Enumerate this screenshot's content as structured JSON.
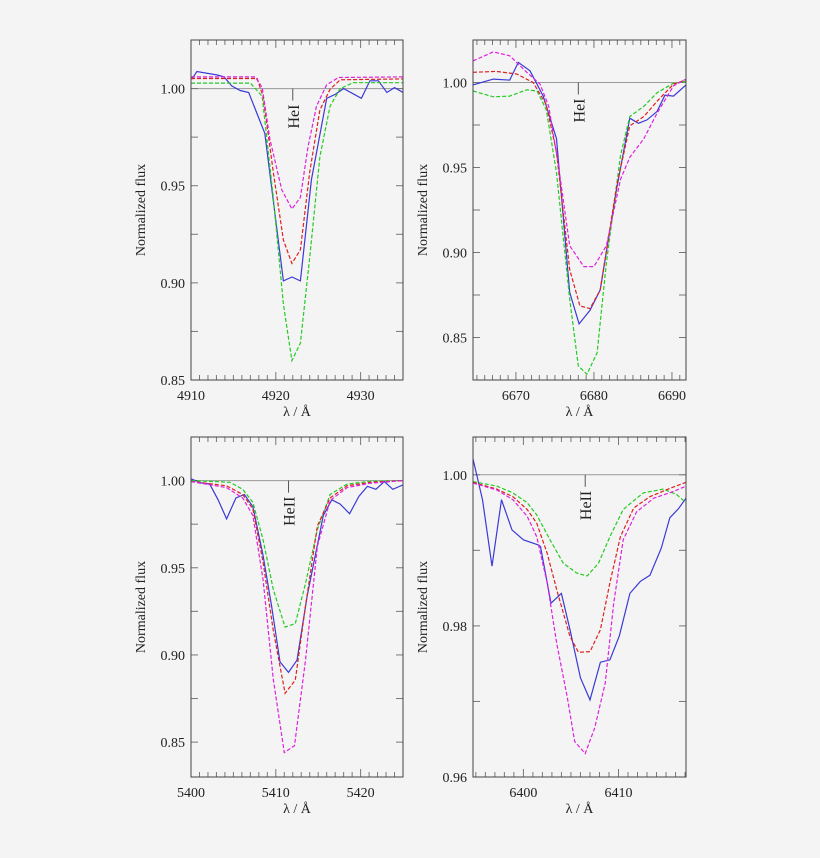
{
  "chart_data": [
    {
      "type": "line",
      "line_label": "HeI",
      "line_center": 4922,
      "xlabel": "λ / Å",
      "ylabel": "Normalized flux",
      "xlim": [
        4910,
        4935
      ],
      "ylim": [
        0.85,
        1.025
      ],
      "xticks": [
        4910,
        4920,
        4930
      ],
      "xtick_labels": [
        "4910",
        "4920",
        "4930"
      ],
      "xminor_step": 1,
      "yticks": [
        0.85,
        0.9,
        0.95,
        1.0
      ],
      "ytick_labels": [
        "0.85",
        "0.90",
        "0.95",
        "1.00"
      ],
      "yminor_step": 0.025,
      "reference_line": 1.0,
      "grid": false,
      "series": [
        {
          "color": "#3a3ad8",
          "style": "solid",
          "x": [
            4910.1,
            4910.7,
            4913.1,
            4913.9,
            4914.8,
            4915.8,
            4916.8,
            4918.7,
            4920.9,
            4921.9,
            4922.9,
            4924.2,
            4926,
            4927,
            4928,
            4930.1,
            4931.1,
            4932.1,
            4933.1,
            4934,
            4935
          ],
          "y": [
            1.0048,
            1.0088,
            1.007,
            1.006,
            1.0014,
            0.999,
            0.998,
            0.977,
            0.901,
            0.903,
            0.901,
            0.953,
            0.995,
            0.997,
            1.0,
            0.995,
            1.004,
            1.004,
            0.998,
            1.0005,
            0.998
          ]
        },
        {
          "color": "#22cc22",
          "style": "dashed",
          "x": [
            4910,
            4917,
            4918.4,
            4919.7,
            4920.9,
            4921.9,
            4922.9,
            4924,
            4925.2,
            4926.4,
            4927.6,
            4929.1,
            4935
          ],
          "y": [
            1.0028,
            1.0028,
            0.996,
            0.944,
            0.889,
            0.86,
            0.869,
            0.913,
            0.965,
            0.991,
            1.0,
            1.003,
            1.003
          ]
        },
        {
          "color": "#e02020",
          "style": "dashed",
          "x": [
            4910,
            4917.8,
            4918.5,
            4919.7,
            4920.9,
            4921.9,
            4922.9,
            4924,
            4925.2,
            4926.4,
            4927.6,
            4935
          ],
          "y": [
            1.0052,
            1.0052,
            0.996,
            0.957,
            0.922,
            0.91,
            0.917,
            0.957,
            0.989,
            0.9997,
            1.0045,
            1.005
          ]
        },
        {
          "color": "#e020e0",
          "style": "dashed",
          "x": [
            4910,
            4917.6,
            4918.4,
            4919.3,
            4920.7,
            4921.9,
            4922.9,
            4923.8,
            4924.8,
            4926,
            4927.4,
            4935
          ],
          "y": [
            1.006,
            1.006,
            1.0005,
            0.974,
            0.948,
            0.938,
            0.944,
            0.97,
            0.991,
            1.002,
            1.0057,
            1.006
          ]
        }
      ]
    },
    {
      "type": "line",
      "line_label": "HeI",
      "line_center": 6678,
      "xlabel": "λ / Å",
      "ylabel": "Normalized flux",
      "xlim": [
        6664.5,
        6691.8
      ],
      "ylim": [
        0.825,
        1.025
      ],
      "xticks": [
        6670,
        6680,
        6690
      ],
      "xtick_labels": [
        "6670",
        "6680",
        "6690"
      ],
      "xminor_step": 1,
      "yticks": [
        0.85,
        0.9,
        0.95,
        1.0
      ],
      "ytick_labels": [
        "0.85",
        "0.90",
        "0.95",
        "1.00"
      ],
      "yminor_step": 0.025,
      "reference_line": 1.0,
      "grid": false,
      "series": [
        {
          "color": "#3a3ad8",
          "style": "solid",
          "x": [
            6664.5,
            6667.1,
            6669.2,
            6670.3,
            6671.8,
            6673.5,
            6675.2,
            6676.9,
            6678.1,
            6679.5,
            6680.8,
            6682.9,
            6684.6,
            6685.7,
            6686.8,
            6688.1,
            6689.1,
            6690.2,
            6691.8
          ],
          "y": [
            0.9986,
            1.002,
            1.0014,
            1.0118,
            1.0069,
            0.992,
            0.967,
            0.8765,
            0.858,
            0.866,
            0.878,
            0.9373,
            0.979,
            0.976,
            0.978,
            0.983,
            0.9925,
            0.992,
            0.9986
          ]
        },
        {
          "color": "#22cc22",
          "style": "dashed",
          "x": [
            6664.5,
            6667.1,
            6669.2,
            6671.4,
            6672.7,
            6673.9,
            6675.2,
            6676.9,
            6678,
            6679.1,
            6680.4,
            6681.6,
            6683.4,
            6684.6,
            6686.4,
            6688.1,
            6690.2,
            6691.8
          ],
          "y": [
            0.995,
            0.9916,
            0.992,
            0.9957,
            0.995,
            0.984,
            0.947,
            0.8725,
            0.8333,
            0.8284,
            0.841,
            0.894,
            0.957,
            0.98,
            0.986,
            0.994,
            0.9996,
            1.0006
          ]
        },
        {
          "color": "#e02020",
          "style": "dashed",
          "x": [
            6664.5,
            6667.5,
            6670.1,
            6672.2,
            6673.9,
            6675.2,
            6676.9,
            6678.2,
            6679.5,
            6680.8,
            6682.9,
            6684.6,
            6686.4,
            6688.1,
            6690.2,
            6691.8
          ],
          "y": [
            1.006,
            1.0065,
            1.005,
            1.0,
            0.987,
            0.959,
            0.89,
            0.8686,
            0.867,
            0.878,
            0.939,
            0.9745,
            0.98,
            0.989,
            0.999,
            1.0016
          ]
        },
        {
          "color": "#e020e0",
          "style": "dashed",
          "x": [
            6664.5,
            6667.1,
            6669.2,
            6671.4,
            6673.1,
            6674.2,
            6675.4,
            6676.9,
            6678.7,
            6680,
            6681.6,
            6683.4,
            6684.6,
            6686.4,
            6688.1,
            6690.2,
            6691.8
          ],
          "y": [
            1.0127,
            1.018,
            1.0157,
            1.006,
            0.999,
            0.986,
            0.953,
            0.904,
            0.8917,
            0.8917,
            0.904,
            0.943,
            0.956,
            0.967,
            0.982,
            0.998,
            1.002
          ]
        }
      ]
    },
    {
      "type": "line",
      "line_label": "HeII",
      "line_center": 5411.5,
      "xlabel": "λ / Å",
      "ylabel": "Normalized flux",
      "xlim": [
        5400,
        5425
      ],
      "ylim": [
        0.83,
        1.025
      ],
      "xticks": [
        5400,
        5410,
        5420
      ],
      "xtick_labels": [
        "5400",
        "5410",
        "5420"
      ],
      "xminor_step": 1,
      "yticks": [
        0.85,
        0.9,
        0.95,
        1.0
      ],
      "ytick_labels": [
        "0.85",
        "0.90",
        "0.95",
        "1.00"
      ],
      "yminor_step": 0.025,
      "reference_line": 1.0,
      "grid": false,
      "series": [
        {
          "color": "#3a3ad8",
          "style": "solid",
          "x": [
            5400,
            5401.2,
            5402.2,
            5403.2,
            5404.2,
            5405.3,
            5406.3,
            5407.3,
            5408.5,
            5409.5,
            5410.5,
            5411.5,
            5412.5,
            5413.7,
            5415.6,
            5416.6,
            5417.6,
            5418.7,
            5419.8,
            5420.8,
            5421.8,
            5422.8,
            5423.8,
            5425
          ],
          "y": [
            1.001,
            0.9987,
            0.998,
            0.989,
            0.978,
            0.99,
            0.992,
            0.985,
            0.957,
            0.928,
            0.896,
            0.89,
            0.897,
            0.934,
            0.98,
            0.989,
            0.9865,
            0.981,
            0.991,
            0.9967,
            0.995,
            0.9994,
            0.995,
            0.9975
          ]
        },
        {
          "color": "#22cc22",
          "style": "dashed",
          "x": [
            5400,
            5404.6,
            5406.1,
            5407.3,
            5408.5,
            5409.7,
            5411.1,
            5412.3,
            5413.5,
            5414.9,
            5416.4,
            5418.4,
            5421.2,
            5425
          ],
          "y": [
            1.0,
            0.999,
            0.995,
            0.9875,
            0.966,
            0.9375,
            0.916,
            0.918,
            0.941,
            0.972,
            0.992,
            0.998,
            0.9996,
            1.0
          ]
        },
        {
          "color": "#e02020",
          "style": "dashed",
          "x": [
            5400,
            5404.2,
            5406.1,
            5407.3,
            5408.5,
            5409.7,
            5411.1,
            5412.3,
            5413.5,
            5414.9,
            5416.4,
            5418.4,
            5421.2,
            5425
          ],
          "y": [
            0.9996,
            0.997,
            0.992,
            0.9837,
            0.953,
            0.914,
            0.878,
            0.8856,
            0.928,
            0.974,
            0.99,
            0.997,
            0.999,
            1.0
          ]
        },
        {
          "color": "#e020e0",
          "style": "dashed",
          "x": [
            5400,
            5404.2,
            5406.1,
            5407.3,
            5408.5,
            5409.7,
            5411,
            5412.2,
            5413.5,
            5414.9,
            5416.4,
            5418.4,
            5421.2,
            5425
          ],
          "y": [
            0.9994,
            0.996,
            0.99,
            0.98,
            0.943,
            0.886,
            0.844,
            0.848,
            0.897,
            0.9625,
            0.9885,
            0.996,
            0.9985,
            1.0
          ]
        }
      ]
    },
    {
      "type": "line",
      "line_label": "HeII",
      "line_center": 6406.5,
      "xlabel": "λ / Å",
      "ylabel": "Normalized flux",
      "xlim": [
        6394.7,
        6417.1
      ],
      "ylim": [
        0.96,
        1.005
      ],
      "xticks": [
        6400,
        6410
      ],
      "xtick_labels": [
        "6400",
        "6410"
      ],
      "xminor_step": 1,
      "yticks": [
        0.96,
        0.98,
        1.0
      ],
      "ytick_labels": [
        "0.96",
        "0.98",
        "1.00"
      ],
      "yminor_step": 0.01,
      "reference_line": 1.0,
      "grid": false,
      "series": [
        {
          "color": "#3a3ad8",
          "style": "solid",
          "x": [
            6394.7,
            6395.7,
            6396.7,
            6397.7,
            6398.8,
            6400,
            6401.6,
            6401.8,
            6402.9,
            6404,
            6404.9,
            6406,
            6407,
            6408.1,
            6409.1,
            6410.1,
            6411.2,
            6412.3,
            6413.3,
            6414.5,
            6415.4,
            6416.3,
            6417.1
          ],
          "y": [
            1.0021,
            0.9967,
            0.9879,
            0.9967,
            0.9927,
            0.9914,
            0.9907,
            0.9905,
            0.983,
            0.9843,
            0.9795,
            0.9731,
            0.9702,
            0.9752,
            0.9755,
            0.9787,
            0.9843,
            0.9859,
            0.9867,
            0.9903,
            0.9943,
            0.9955,
            0.9969
          ]
        },
        {
          "color": "#22cc22",
          "style": "dashed",
          "x": [
            6394.7,
            6397.2,
            6398.9,
            6400.4,
            6401.4,
            6402.8,
            6404.2,
            6405.6,
            6406.7,
            6407.9,
            6409.1,
            6410.5,
            6412.6,
            6414.7,
            6416.1,
            6417.1
          ],
          "y": [
            0.9991,
            0.9985,
            0.9976,
            0.9963,
            0.9947,
            0.9914,
            0.9883,
            0.987,
            0.9866,
            0.9883,
            0.9918,
            0.9954,
            0.9976,
            0.9981,
            0.9974,
            0.9963
          ]
        },
        {
          "color": "#e02020",
          "style": "dashed",
          "x": [
            6394.7,
            6397.2,
            6398.9,
            6400.4,
            6401.4,
            6402.5,
            6403.5,
            6404.9,
            6405.8,
            6407,
            6408.1,
            6409.1,
            6410.2,
            6411.6,
            6413.3,
            6415.4,
            6417.1
          ],
          "y": [
            0.999,
            0.9981,
            0.9971,
            0.9954,
            0.9936,
            0.9896,
            0.9848,
            0.9786,
            0.9765,
            0.9766,
            0.9795,
            0.9857,
            0.9918,
            0.9956,
            0.9971,
            0.9982,
            0.999
          ]
        },
        {
          "color": "#e020e0",
          "style": "dashed",
          "x": [
            6394.7,
            6397.2,
            6398.9,
            6400.4,
            6401.4,
            6402.5,
            6403.5,
            6404.6,
            6405.4,
            6406.5,
            6407.5,
            6408.6,
            6409.5,
            6410.5,
            6411.9,
            6413.7,
            6415.8,
            6417.1
          ],
          "y": [
            0.9989,
            0.998,
            0.9967,
            0.9945,
            0.9918,
            0.9857,
            0.9777,
            0.9707,
            0.9647,
            0.9631,
            0.9665,
            0.9724,
            0.983,
            0.9914,
            0.9951,
            0.9969,
            0.9978,
            0.9985
          ]
        }
      ]
    }
  ]
}
